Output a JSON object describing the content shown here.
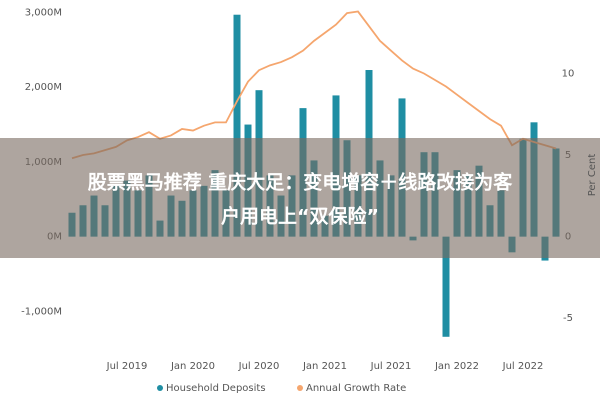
{
  "chart_data": {
    "type": "bar_line",
    "overlay_text": [
      "股票黑马推荐 重庆大足：变电增容＋线路改接为客",
      "户用电上“双保险”"
    ],
    "y2_label": "Per Cent",
    "categories": [
      null,
      null,
      null,
      null,
      null,
      "Jul 2019",
      null,
      null,
      null,
      null,
      null,
      "Jan 2020",
      null,
      null,
      null,
      null,
      null,
      "Jul 2020",
      null,
      null,
      null,
      null,
      null,
      "Jan 2021",
      null,
      null,
      null,
      null,
      null,
      "Jul 2021",
      null,
      null,
      null,
      null,
      null,
      "Jan 2022",
      null,
      null,
      null,
      null,
      null,
      "Jul 2022",
      null,
      null,
      null
    ],
    "series": [
      {
        "name": "Household Deposits",
        "color": "#1f8ea3",
        "type": "bar",
        "values": [
          320,
          420,
          550,
          420,
          680,
          750,
          620,
          820,
          215,
          550,
          480,
          620,
          680,
          890,
          620,
          2970,
          1500,
          1960,
          820,
          550,
          820,
          1720,
          1020,
          280,
          1890,
          1290,
          820,
          2230,
          1020,
          820,
          1850,
          -50,
          1130,
          1130,
          -1340,
          890,
          820,
          950,
          420,
          620,
          -210,
          1310,
          1530,
          -320,
          1180
        ]
      },
      {
        "name": "Annual Growth Rate",
        "color": "#f5a66e",
        "type": "line",
        "axis": "y2",
        "values": [
          4.8,
          5.0,
          5.1,
          5.3,
          5.5,
          5.9,
          6.1,
          6.4,
          6.0,
          6.2,
          6.6,
          6.5,
          6.8,
          7.0,
          7.0,
          8.3,
          9.5,
          10.2,
          10.5,
          10.7,
          11.0,
          11.4,
          12.0,
          12.5,
          13.0,
          13.7,
          13.8,
          12.9,
          12.0,
          11.4,
          10.8,
          10.3,
          10.0,
          9.6,
          9.2,
          8.7,
          8.2,
          7.7,
          7.2,
          6.8,
          5.6,
          6.0,
          5.8,
          5.6,
          5.4
        ]
      }
    ],
    "ylim": [
      -1450,
      3100
    ],
    "yticks": [
      {
        "value": -1000,
        "label": "-1,000M"
      },
      {
        "value": 0,
        "label": "0M"
      },
      {
        "value": 1000,
        "label": "1,000M"
      },
      {
        "value": 2000,
        "label": "2,000M"
      },
      {
        "value": 3000,
        "label": "3,000M"
      }
    ],
    "y2lim": [
      -6.65,
      14.2
    ],
    "y2ticks": [
      -5,
      0,
      5,
      10
    ],
    "legend": "bottom"
  }
}
